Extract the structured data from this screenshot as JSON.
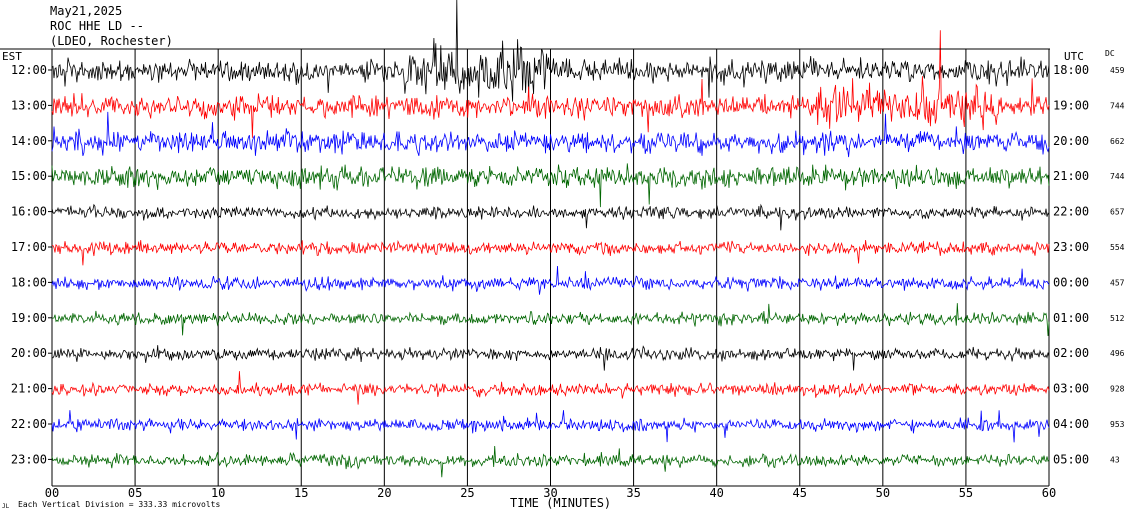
{
  "header": {
    "date": "May21,2025",
    "station": "ROC HHE LD --",
    "institution": "(LDEO, Rochester)"
  },
  "left_tz": "EST",
  "right_tz": "UTC",
  "dc_header": "DC",
  "x_axis_label": "TIME (MINUTES)",
  "scale_note": "Each Vertical Division = 333.33 microvolts",
  "corner_mark": "JL",
  "colors": [
    "#000000",
    "#ff0000",
    "#0000ff",
    "#006600"
  ],
  "chart_data": {
    "type": "line",
    "title": "ROC HHE LD -- (LDEO, Rochester)",
    "xlabel": "TIME (MINUTES)",
    "xlim": [
      0,
      60
    ],
    "x_ticks": [
      "00",
      "05",
      "10",
      "15",
      "20",
      "25",
      "30",
      "35",
      "40",
      "45",
      "50",
      "55",
      "60"
    ],
    "series": [
      {
        "name": "12:00",
        "utc": "18:00",
        "dc": "459",
        "color": "black",
        "noise": "high"
      },
      {
        "name": "13:00",
        "utc": "19:00",
        "dc": "744",
        "color": "red",
        "noise": "high"
      },
      {
        "name": "14:00",
        "utc": "20:00",
        "dc": "662",
        "color": "blue",
        "noise": "high"
      },
      {
        "name": "15:00",
        "utc": "21:00",
        "dc": "744",
        "color": "green",
        "noise": "high"
      },
      {
        "name": "16:00",
        "utc": "22:00",
        "dc": "657",
        "color": "black",
        "noise": "medium"
      },
      {
        "name": "17:00",
        "utc": "23:00",
        "dc": "554",
        "color": "red",
        "noise": "medium"
      },
      {
        "name": "18:00",
        "utc": "00:00",
        "dc": "457",
        "color": "blue",
        "noise": "medium"
      },
      {
        "name": "19:00",
        "utc": "01:00",
        "dc": "512",
        "color": "green",
        "noise": "medium"
      },
      {
        "name": "20:00",
        "utc": "02:00",
        "dc": "496",
        "color": "black",
        "noise": "medium"
      },
      {
        "name": "21:00",
        "utc": "03:00",
        "dc": "928",
        "color": "red",
        "noise": "medium"
      },
      {
        "name": "22:00",
        "utc": "04:00",
        "dc": "953",
        "color": "blue",
        "noise": "medium"
      },
      {
        "name": "23:00",
        "utc": "05:00",
        "dc": "43",
        "color": "green",
        "noise": "medium"
      }
    ]
  }
}
